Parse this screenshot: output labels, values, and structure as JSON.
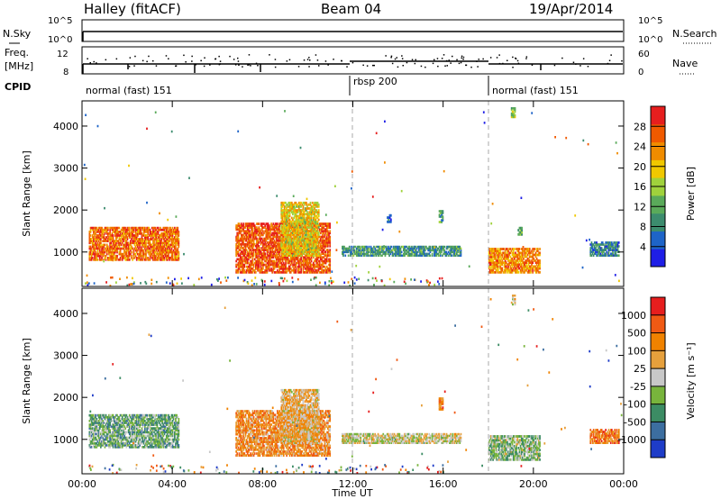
{
  "header": {
    "station": "Halley (fitACF)",
    "beam": "Beam 04",
    "date": "19/Apr/2014"
  },
  "strips": {
    "nsky_label": "N.Sky",
    "nsky_ticks": [
      "10^5",
      "10^0"
    ],
    "nsearch_label": "N.Search",
    "nsearch_ticks": [
      "10^5",
      "10^0"
    ],
    "freq_label": "Freq.",
    "freq_unit": "[MHz]",
    "freq_ticks": [
      "12",
      "8"
    ],
    "nave_label": "Nave",
    "nave_ticks": [
      "60",
      "0"
    ],
    "cpid_label": "CPID",
    "cpid_segments": [
      {
        "label": "normal (fast) 151",
        "start_h": 0,
        "end_h": 12
      },
      {
        "label": "rbsp 200",
        "start_h": 12,
        "end_h": 18
      },
      {
        "label": "normal (fast) 151",
        "start_h": 18,
        "end_h": 24
      }
    ]
  },
  "colors": {
    "power": [
      "#1e1ee6",
      "#1e64c8",
      "#3c8c6e",
      "#5aaa5a",
      "#a0d23c",
      "#f0c800",
      "#f08c00",
      "#f05a00",
      "#e61e1e"
    ],
    "velocity": [
      "#1e3cc8",
      "#3c6ea0",
      "#3c8c64",
      "#78b43c",
      "#c8c8c8",
      "#e6a03c",
      "#f08200",
      "#f05a14",
      "#e61e1e"
    ]
  },
  "chart_data": [
    {
      "type": "heatmap",
      "name": "power",
      "ylabel": "Slant Range [km]",
      "xlabel": "",
      "ylim": [
        180,
        4600
      ],
      "xlim": [
        0,
        24
      ],
      "yticks": [
        1000,
        2000,
        3000,
        4000
      ],
      "colorbar": {
        "label": "Power [dB]",
        "ticks": [
          "28",
          "24",
          "20",
          "16",
          "12",
          "8",
          "4"
        ]
      },
      "features": [
        {
          "t0": 0.3,
          "t1": 4.3,
          "r0": 800,
          "r1": 1600,
          "level": 0.8
        },
        {
          "t0": 6.8,
          "t1": 11.0,
          "r0": 500,
          "r1": 1700,
          "level": 0.85
        },
        {
          "t0": 8.8,
          "t1": 10.5,
          "r0": 900,
          "r1": 2200,
          "level": 0.6
        },
        {
          "t0": 11.5,
          "t1": 16.8,
          "r0": 900,
          "r1": 1150,
          "level": 0.3
        },
        {
          "t0": 18.0,
          "t1": 20.3,
          "r0": 500,
          "r1": 1100,
          "level": 0.75
        },
        {
          "t0": 22.5,
          "t1": 23.8,
          "r0": 900,
          "r1": 1250,
          "level": 0.25
        },
        {
          "t0": 13.5,
          "t1": 13.7,
          "r0": 1700,
          "r1": 1900,
          "level": 0.2
        },
        {
          "t0": 15.8,
          "t1": 16.0,
          "r0": 1700,
          "r1": 2000,
          "level": 0.3
        },
        {
          "t0": 19.0,
          "t1": 19.2,
          "r0": 4200,
          "r1": 4450,
          "level": 0.5
        },
        {
          "t0": 19.3,
          "t1": 19.5,
          "r0": 1400,
          "r1": 1600,
          "level": 0.35
        }
      ]
    },
    {
      "type": "heatmap",
      "name": "velocity",
      "ylabel": "Slant Range [km]",
      "xlabel": "Time UT",
      "ylim": [
        180,
        4600
      ],
      "xlim": [
        0,
        24
      ],
      "yticks": [
        1000,
        2000,
        3000,
        4000
      ],
      "xticks": [
        "00:00",
        "04:00",
        "08:00",
        "12:00",
        "16:00",
        "20:00",
        "00:00"
      ],
      "colorbar": {
        "label": "Velocity [m s⁻¹]",
        "ticks": [
          "1000",
          "500",
          "100",
          "25",
          "-25",
          "-100",
          "-500",
          "-1000"
        ]
      },
      "features": [
        {
          "t0": 0.3,
          "t1": 4.3,
          "r0": 800,
          "r1": 1600,
          "level": 0.35
        },
        {
          "t0": 6.8,
          "t1": 11.0,
          "r0": 600,
          "r1": 1700,
          "level": 0.7
        },
        {
          "t0": 8.8,
          "t1": 10.5,
          "r0": 900,
          "r1": 2200,
          "level": 0.6
        },
        {
          "t0": 11.5,
          "t1": 16.8,
          "r0": 900,
          "r1": 1150,
          "level": 0.5
        },
        {
          "t0": 18.0,
          "t1": 20.3,
          "r0": 500,
          "r1": 1100,
          "level": 0.4
        },
        {
          "t0": 22.5,
          "t1": 23.8,
          "r0": 900,
          "r1": 1250,
          "level": 0.75
        },
        {
          "t0": 15.8,
          "t1": 16.0,
          "r0": 1700,
          "r1": 2000,
          "level": 0.75
        },
        {
          "t0": 19.0,
          "t1": 19.2,
          "r0": 4200,
          "r1": 4450,
          "level": 0.55
        }
      ]
    }
  ]
}
